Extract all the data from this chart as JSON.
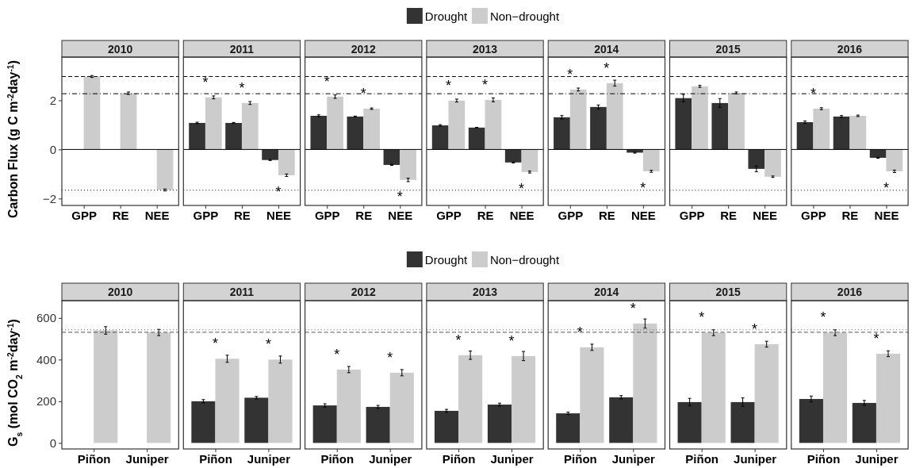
{
  "chart_data": [
    {
      "type": "bar",
      "title": "2010",
      "ylabel": "Carbon Flux (g C m$^{-2}$day$^{-1}$)",
      "categories": [
        "GPP",
        "RE",
        "NEE"
      ],
      "legend": "top",
      "ylim": [
        -2.28,
        3.76
      ],
      "yticks": [
        -2,
        0,
        2
      ],
      "grid": false,
      "series": [
        {
          "name": "Drought",
          "color": "#333333",
          "values": [
            null,
            null,
            null
          ],
          "errors": [
            null,
            null,
            null
          ]
        },
        {
          "name": "Non−drought",
          "color": "#cccccc",
          "values": [
            2.97,
            2.29,
            -1.65
          ],
          "errors": [
            0.04,
            0.05,
            0.04
          ]
        }
      ],
      "ref_lines": [
        {
          "axis": "y",
          "value": 0,
          "line_style": "solid",
          "color": "#000000"
        },
        {
          "axis": "y",
          "value": 2.97,
          "line_style": "dashed",
          "color": "#000000"
        },
        {
          "axis": "y",
          "value": 2.27,
          "line_style": "dashdot",
          "color": "#000000"
        },
        {
          "axis": "y",
          "value": -1.66,
          "line_style": "dotted",
          "color": "#000000"
        }
      ]
    },
    {
      "type": "bar",
      "title": "2011",
      "categories": [
        "GPP",
        "RE",
        "NEE"
      ],
      "ylim": [
        -2.28,
        3.76
      ],
      "yticks": [
        -2,
        0,
        2
      ],
      "tick_labels": "x",
      "grid": false,
      "series": [
        {
          "color": "#333333",
          "values": [
            1.08,
            1.08,
            -0.43
          ],
          "errors": [
            0.03,
            0.02,
            0.02
          ]
        },
        {
          "color": "#cccccc",
          "values": [
            2.12,
            1.89,
            -1.05
          ],
          "errors": [
            0.06,
            0.06,
            0.05
          ]
        }
      ],
      "annotations": [
        {
          "text": "*",
          "x": "GPP",
          "y": 2.12
        },
        {
          "text": "*",
          "x": "RE",
          "y": 1.89
        },
        {
          "text": "*",
          "x": "NEE",
          "y": -1.05
        }
      ],
      "ref_lines": [
        {
          "axis": "y",
          "value": 0,
          "line_style": "solid",
          "color": "#000000"
        },
        {
          "axis": "y",
          "value": 2.97,
          "line_style": "dashed",
          "color": "#000000"
        },
        {
          "axis": "y",
          "value": 2.27,
          "line_style": "dashdot",
          "color": "#000000"
        },
        {
          "axis": "y",
          "value": -1.66,
          "line_style": "dotted",
          "color": "#000000"
        }
      ]
    },
    {
      "type": "bar",
      "title": "2012",
      "categories": [
        "GPP",
        "RE",
        "NEE"
      ],
      "ylim": [
        -2.28,
        3.76
      ],
      "yticks": [
        -2,
        0,
        2
      ],
      "tick_labels": "x",
      "grid": false,
      "series": [
        {
          "color": "#333333",
          "values": [
            1.37,
            1.34,
            -0.63
          ],
          "errors": [
            0.04,
            0.02,
            0.02
          ]
        },
        {
          "color": "#cccccc",
          "values": [
            2.15,
            1.66,
            -1.24
          ],
          "errors": [
            0.07,
            0.03,
            0.07
          ]
        }
      ],
      "annotations": [
        {
          "text": "*",
          "x": "GPP",
          "y": 2.15
        },
        {
          "text": "*",
          "x": "RE",
          "y": 1.66
        },
        {
          "text": "*",
          "x": "NEE",
          "y": -1.24
        }
      ],
      "ref_lines": [
        {
          "axis": "y",
          "value": 0,
          "line_style": "solid",
          "color": "#000000"
        },
        {
          "axis": "y",
          "value": 2.97,
          "line_style": "dashed",
          "color": "#000000"
        },
        {
          "axis": "y",
          "value": 2.27,
          "line_style": "dashdot",
          "color": "#000000"
        },
        {
          "axis": "y",
          "value": -1.66,
          "line_style": "dotted",
          "color": "#000000"
        }
      ]
    },
    {
      "type": "bar",
      "title": "2013",
      "categories": [
        "GPP",
        "RE",
        "NEE"
      ],
      "ylim": [
        -2.28,
        3.76
      ],
      "yticks": [
        -2,
        0,
        2
      ],
      "tick_labels": "x",
      "grid": false,
      "series": [
        {
          "color": "#333333",
          "values": [
            0.98,
            0.89,
            -0.53
          ],
          "errors": [
            0.03,
            0.01,
            0.02
          ]
        },
        {
          "color": "#cccccc",
          "values": [
            1.99,
            2.02,
            -0.92
          ],
          "errors": [
            0.06,
            0.08,
            0.04
          ]
        }
      ],
      "annotations": [
        {
          "text": "*",
          "x": "GPP",
          "y": 1.99
        },
        {
          "text": "*",
          "x": "RE",
          "y": 2.02
        },
        {
          "text": "*",
          "x": "NEE",
          "y": -0.92
        }
      ],
      "ref_lines": [
        {
          "axis": "y",
          "value": 0,
          "line_style": "solid",
          "color": "#000000"
        },
        {
          "axis": "y",
          "value": 2.97,
          "line_style": "dashed",
          "color": "#000000"
        },
        {
          "axis": "y",
          "value": 2.27,
          "line_style": "dashdot",
          "color": "#000000"
        },
        {
          "axis": "y",
          "value": -1.66,
          "line_style": "dotted",
          "color": "#000000"
        }
      ]
    },
    {
      "type": "bar",
      "title": "2014",
      "categories": [
        "GPP",
        "RE",
        "NEE"
      ],
      "ylim": [
        -2.28,
        3.76
      ],
      "yticks": [
        -2,
        0,
        2
      ],
      "tick_labels": "x",
      "grid": false,
      "series": [
        {
          "color": "#333333",
          "values": [
            1.31,
            1.73,
            -0.13
          ],
          "errors": [
            0.07,
            0.08,
            0.02
          ]
        },
        {
          "color": "#cccccc",
          "values": [
            2.44,
            2.7,
            -0.89
          ],
          "errors": [
            0.06,
            0.12,
            0.04
          ]
        }
      ],
      "annotations": [
        {
          "text": "*",
          "x": "GPP",
          "y": 2.44
        },
        {
          "text": "*",
          "x": "RE",
          "y": 2.7
        },
        {
          "text": "*",
          "x": "NEE",
          "y": -0.89
        }
      ],
      "ref_lines": [
        {
          "axis": "y",
          "value": 0,
          "line_style": "solid",
          "color": "#000000"
        },
        {
          "axis": "y",
          "value": 2.97,
          "line_style": "dashed",
          "color": "#000000"
        },
        {
          "axis": "y",
          "value": 2.27,
          "line_style": "dashdot",
          "color": "#000000"
        },
        {
          "axis": "y",
          "value": -1.66,
          "line_style": "dotted",
          "color": "#000000"
        }
      ]
    },
    {
      "type": "bar",
      "title": "2015",
      "categories": [
        "GPP",
        "RE",
        "NEE"
      ],
      "ylim": [
        -2.28,
        3.76
      ],
      "yticks": [
        -2,
        0,
        2
      ],
      "tick_labels": "x",
      "grid": false,
      "series": [
        {
          "color": "#333333",
          "values": [
            2.09,
            1.89,
            -0.79
          ],
          "errors": [
            0.15,
            0.18,
            0.12
          ]
        },
        {
          "color": "#cccccc",
          "values": [
            2.57,
            2.3,
            -1.11
          ],
          "errors": [
            0.04,
            0.04,
            0.03
          ]
        }
      ],
      "ref_lines": [
        {
          "axis": "y",
          "value": 0,
          "line_style": "solid",
          "color": "#000000"
        },
        {
          "axis": "y",
          "value": 2.97,
          "line_style": "dashed",
          "color": "#000000"
        },
        {
          "axis": "y",
          "value": 2.27,
          "line_style": "dashdot",
          "color": "#000000"
        },
        {
          "axis": "y",
          "value": -1.66,
          "line_style": "dotted",
          "color": "#000000"
        }
      ]
    },
    {
      "type": "bar",
      "title": "2016",
      "categories": [
        "GPP",
        "RE",
        "NEE"
      ],
      "ylim": [
        -2.28,
        3.76
      ],
      "yticks": [
        -2,
        0,
        2
      ],
      "tick_labels": "x",
      "grid": false,
      "series": [
        {
          "color": "#333333",
          "values": [
            1.11,
            1.34,
            -0.34
          ],
          "errors": [
            0.05,
            0.04,
            0.02
          ]
        },
        {
          "color": "#cccccc",
          "values": [
            1.66,
            1.37,
            -0.89
          ],
          "errors": [
            0.04,
            0.03,
            0.05
          ]
        }
      ],
      "annotations": [
        {
          "text": "*",
          "x": "GPP",
          "y": 1.66
        },
        {
          "text": "*",
          "x": "NEE",
          "y": -0.89
        }
      ],
      "ref_lines": [
        {
          "axis": "y",
          "value": 0,
          "line_style": "solid",
          "color": "#000000"
        },
        {
          "axis": "y",
          "value": 2.97,
          "line_style": "dashed",
          "color": "#000000"
        },
        {
          "axis": "y",
          "value": 2.27,
          "line_style": "dashdot",
          "color": "#000000"
        },
        {
          "axis": "y",
          "value": -1.66,
          "line_style": "dotted",
          "color": "#000000"
        }
      ]
    },
    {
      "type": "bar",
      "title": "2010",
      "ylabel": "G$_{s}$ (mol CO$_{2}$ m$^{-2}$day$^{-1}$)",
      "categories": [
        "Piñon",
        "Juniper"
      ],
      "legend": "top",
      "ylim": [
        -29,
        683
      ],
      "yticks": [
        0,
        200,
        400,
        600
      ],
      "grid": false,
      "series": [
        {
          "name": "Drought",
          "color": "#333333",
          "values": [
            null,
            null
          ],
          "errors": [
            null,
            null
          ]
        },
        {
          "name": "Non−drought",
          "color": "#cccccc",
          "values": [
            540,
            530
          ],
          "errors": [
            18,
            15
          ]
        }
      ],
      "ref_lines": [
        {
          "axis": "y",
          "value": 543,
          "line_style": "dotted",
          "color": "#555555"
        },
        {
          "axis": "y",
          "value": 531,
          "line_style": "dashed",
          "color": "#555555"
        }
      ]
    },
    {
      "type": "bar",
      "title": "2011",
      "categories": [
        "Piñon",
        "Juniper"
      ],
      "ylim": [
        -29,
        683
      ],
      "yticks": [
        0,
        200,
        400,
        600
      ],
      "tick_labels": "x",
      "grid": false,
      "series": [
        {
          "color": "#333333",
          "values": [
            200,
            217
          ],
          "errors": [
            8,
            6
          ]
        },
        {
          "color": "#cccccc",
          "values": [
            404,
            400
          ],
          "errors": [
            17,
            17
          ]
        }
      ],
      "annotations": [
        {
          "text": "*",
          "x": "Piñon",
          "y": 404
        },
        {
          "text": "*",
          "x": "Juniper",
          "y": 400
        }
      ],
      "ref_lines": [
        {
          "axis": "y",
          "value": 543,
          "line_style": "dotted",
          "color": "#555555"
        },
        {
          "axis": "y",
          "value": 531,
          "line_style": "dashed",
          "color": "#555555"
        }
      ]
    },
    {
      "type": "bar",
      "title": "2012",
      "categories": [
        "Piñon",
        "Juniper"
      ],
      "ylim": [
        -29,
        683
      ],
      "yticks": [
        0,
        200,
        400,
        600
      ],
      "tick_labels": "x",
      "grid": false,
      "series": [
        {
          "color": "#333333",
          "values": [
            180,
            173
          ],
          "errors": [
            8,
            7
          ]
        },
        {
          "color": "#cccccc",
          "values": [
            352,
            337
          ],
          "errors": [
            15,
            15
          ]
        }
      ],
      "annotations": [
        {
          "text": "*",
          "x": "Piñon",
          "y": 352
        },
        {
          "text": "*",
          "x": "Juniper",
          "y": 337
        }
      ],
      "ref_lines": [
        {
          "axis": "y",
          "value": 543,
          "line_style": "dotted",
          "color": "#555555"
        },
        {
          "axis": "y",
          "value": 531,
          "line_style": "dashed",
          "color": "#555555"
        }
      ]
    },
    {
      "type": "bar",
      "title": "2013",
      "categories": [
        "Piñon",
        "Juniper"
      ],
      "ylim": [
        -29,
        683
      ],
      "yticks": [
        0,
        200,
        400,
        600
      ],
      "tick_labels": "x",
      "grid": false,
      "series": [
        {
          "color": "#333333",
          "values": [
            154,
            184
          ],
          "errors": [
            7,
            7
          ]
        },
        {
          "color": "#cccccc",
          "values": [
            421,
            417
          ],
          "errors": [
            20,
            22
          ]
        }
      ],
      "annotations": [
        {
          "text": "*",
          "x": "Piñon",
          "y": 421
        },
        {
          "text": "*",
          "x": "Juniper",
          "y": 417
        }
      ],
      "ref_lines": [
        {
          "axis": "y",
          "value": 543,
          "line_style": "dotted",
          "color": "#555555"
        },
        {
          "axis": "y",
          "value": 531,
          "line_style": "dashed",
          "color": "#555555"
        }
      ]
    },
    {
      "type": "bar",
      "title": "2014",
      "categories": [
        "Piñon",
        "Juniper"
      ],
      "ylim": [
        -29,
        683
      ],
      "yticks": [
        0,
        200,
        400,
        600
      ],
      "tick_labels": "x",
      "grid": false,
      "series": [
        {
          "color": "#333333",
          "values": [
            142,
            219
          ],
          "errors": [
            6,
            8
          ]
        },
        {
          "color": "#cccccc",
          "values": [
            459,
            573
          ],
          "errors": [
            15,
            22
          ]
        }
      ],
      "annotations": [
        {
          "text": "*",
          "x": "Piñon",
          "y": 459
        },
        {
          "text": "*",
          "x": "Juniper",
          "y": 573
        }
      ],
      "ref_lines": [
        {
          "axis": "y",
          "value": 543,
          "line_style": "dotted",
          "color": "#555555"
        },
        {
          "axis": "y",
          "value": 531,
          "line_style": "dashed",
          "color": "#555555"
        }
      ]
    },
    {
      "type": "bar",
      "title": "2015",
      "categories": [
        "Piñon",
        "Juniper"
      ],
      "ylim": [
        -29,
        683
      ],
      "yticks": [
        0,
        200,
        400,
        600
      ],
      "tick_labels": "x",
      "grid": false,
      "series": [
        {
          "color": "#333333",
          "values": [
            196,
            196
          ],
          "errors": [
            18,
            20
          ]
        },
        {
          "color": "#cccccc",
          "values": [
            529,
            474
          ],
          "errors": [
            14,
            14
          ]
        }
      ],
      "annotations": [
        {
          "text": "*",
          "x": "Piñon",
          "y": 529
        },
        {
          "text": "*",
          "x": "Juniper",
          "y": 474
        }
      ],
      "ref_lines": [
        {
          "axis": "y",
          "value": 543,
          "line_style": "dotted",
          "color": "#555555"
        },
        {
          "axis": "y",
          "value": 531,
          "line_style": "dashed",
          "color": "#555555"
        }
      ]
    },
    {
      "type": "bar",
      "title": "2016",
      "categories": [
        "Piñon",
        "Juniper"
      ],
      "ylim": [
        -29,
        683
      ],
      "yticks": [
        0,
        200,
        400,
        600
      ],
      "tick_labels": "x",
      "grid": false,
      "series": [
        {
          "color": "#333333",
          "values": [
            211,
            192
          ],
          "errors": [
            14,
            12
          ]
        },
        {
          "color": "#cccccc",
          "values": [
            529,
            428
          ],
          "errors": [
            14,
            14
          ]
        }
      ],
      "annotations": [
        {
          "text": "*",
          "x": "Piñon",
          "y": 529
        },
        {
          "text": "*",
          "x": "Juniper",
          "y": 428
        }
      ],
      "ref_lines": [
        {
          "axis": "y",
          "value": 543,
          "line_style": "dotted",
          "color": "#555555"
        },
        {
          "axis": "y",
          "value": 531,
          "line_style": "dashed",
          "color": "#555555"
        }
      ]
    }
  ]
}
